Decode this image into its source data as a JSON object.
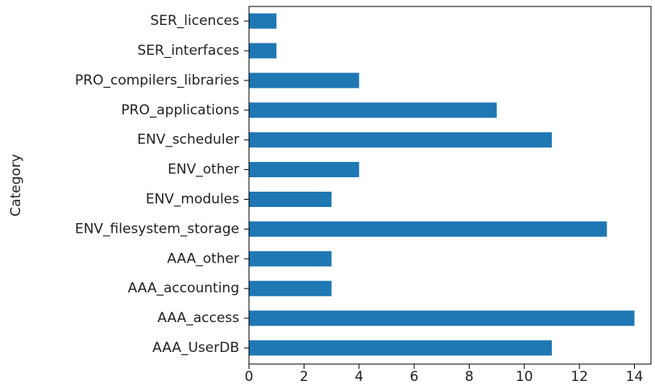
{
  "chart_data": {
    "type": "barh",
    "ylabel": "Category",
    "categories": [
      "AAA_UserDB",
      "AAA_access",
      "AAA_accounting",
      "AAA_other",
      "ENV_filesystem_storage",
      "ENV_modules",
      "ENV_other",
      "ENV_scheduler",
      "PRO_applications",
      "PRO_compilers_libraries",
      "SER_interfaces",
      "SER_licences"
    ],
    "values": [
      11,
      14,
      3,
      3,
      13,
      3,
      4,
      11,
      9,
      4,
      1,
      1
    ],
    "color": "#1f77b4",
    "xlim": [
      0,
      14.6
    ],
    "xticks": [
      0,
      2,
      4,
      6,
      8,
      10,
      12,
      14
    ],
    "grid": false
  }
}
